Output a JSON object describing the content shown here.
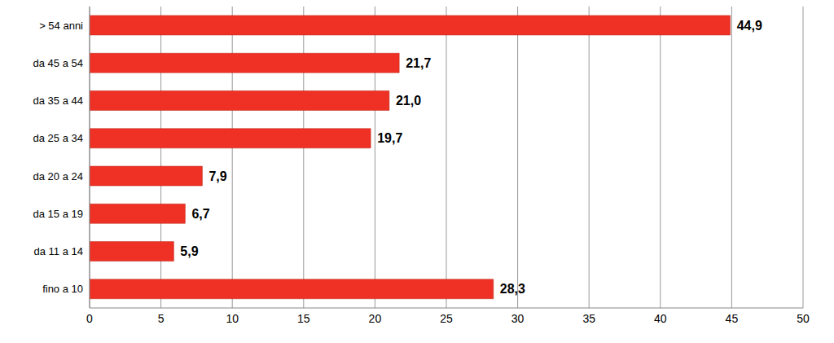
{
  "chart_data": {
    "type": "bar",
    "orientation": "horizontal",
    "categories": [
      "> 54 anni",
      "da 45 a 54",
      "da 35 a 44",
      "da 25 a 34",
      "da 20 a 24",
      "da 15 a 19",
      "da 11 a 14",
      "fino a 10"
    ],
    "values": [
      44.9,
      21.7,
      21.0,
      19.7,
      7.9,
      6.7,
      5.9,
      28.3
    ],
    "value_labels": [
      "44,9",
      "21,7",
      "21,0",
      "19,7",
      "7,9",
      "6,7",
      "5,9",
      "28,3"
    ],
    "color": "#ee3124",
    "xlim": [
      0,
      50
    ],
    "xticks": [
      0,
      5,
      10,
      15,
      20,
      25,
      30,
      35,
      40,
      45,
      50
    ],
    "grid": true,
    "data_labels": true
  }
}
